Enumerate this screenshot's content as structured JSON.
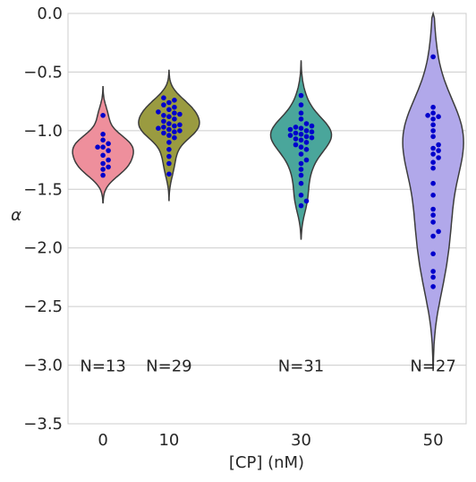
{
  "chart_data": {
    "type": "violin",
    "xlabel": "[CP] (nM)",
    "ylabel": "α",
    "ylim": [
      -3.5,
      0.0
    ],
    "yticks": [
      "0.0",
      "−0.5",
      "−1.0",
      "−1.5",
      "−2.0",
      "−2.5",
      "−3.0",
      "−3.5"
    ],
    "ytick_values": [
      0.0,
      -0.5,
      -1.0,
      -1.5,
      -2.0,
      -2.5,
      -3.0,
      -3.5
    ],
    "grid": "horizontal",
    "point_color": "#0000cc",
    "groups": [
      {
        "category": "0",
        "x": 0,
        "color": "#ee8f9c",
        "n_label": "N=13",
        "violin_range": [
          -1.62,
          -0.62
        ],
        "points": [
          -0.87,
          -1.03,
          -1.08,
          -1.11,
          -1.14,
          -1.17,
          -1.21,
          -1.25,
          -1.28,
          -1.31,
          -1.33,
          -1.38,
          -1.14
        ]
      },
      {
        "category": "10",
        "x": 10,
        "color": "#9a9b40",
        "n_label": "N=29",
        "violin_range": [
          -1.6,
          -0.48
        ],
        "points": [
          -0.72,
          -0.74,
          -0.76,
          -0.78,
          -0.8,
          -0.82,
          -0.84,
          -0.85,
          -0.86,
          -0.87,
          -0.88,
          -0.9,
          -0.92,
          -0.94,
          -0.95,
          -0.96,
          -0.97,
          -0.98,
          -0.99,
          -1.0,
          -1.01,
          -1.02,
          -1.04,
          -1.06,
          -1.1,
          -1.16,
          -1.22,
          -1.28,
          -1.37
        ]
      },
      {
        "category": "30",
        "x": 30,
        "color": "#4aa69b",
        "n_label": "N=31",
        "violin_range": [
          -1.93,
          -0.4
        ],
        "points": [
          -0.7,
          -0.78,
          -0.85,
          -0.9,
          -0.94,
          -0.96,
          -0.97,
          -0.98,
          -0.99,
          -1.0,
          -1.01,
          -1.02,
          -1.03,
          -1.04,
          -1.05,
          -1.06,
          -1.07,
          -1.08,
          -1.1,
          -1.12,
          -1.14,
          -1.16,
          -1.2,
          -1.25,
          -1.28,
          -1.33,
          -1.38,
          -1.45,
          -1.55,
          -1.6,
          -1.64
        ]
      },
      {
        "category": "50",
        "x": 50,
        "color": "#b1a8ea",
        "n_label": "N=27",
        "violin_range": [
          -3.05,
          0.0
        ],
        "points": [
          -0.37,
          -0.8,
          -0.85,
          -0.87,
          -0.88,
          -0.9,
          -0.95,
          -1.0,
          -1.05,
          -1.12,
          -1.15,
          -1.17,
          -1.2,
          -1.23,
          -1.27,
          -1.45,
          -1.55,
          -1.67,
          -1.72,
          -1.78,
          -1.86,
          -1.9,
          -2.05,
          -2.2,
          -2.25,
          -2.33,
          -1.32
        ]
      }
    ]
  }
}
